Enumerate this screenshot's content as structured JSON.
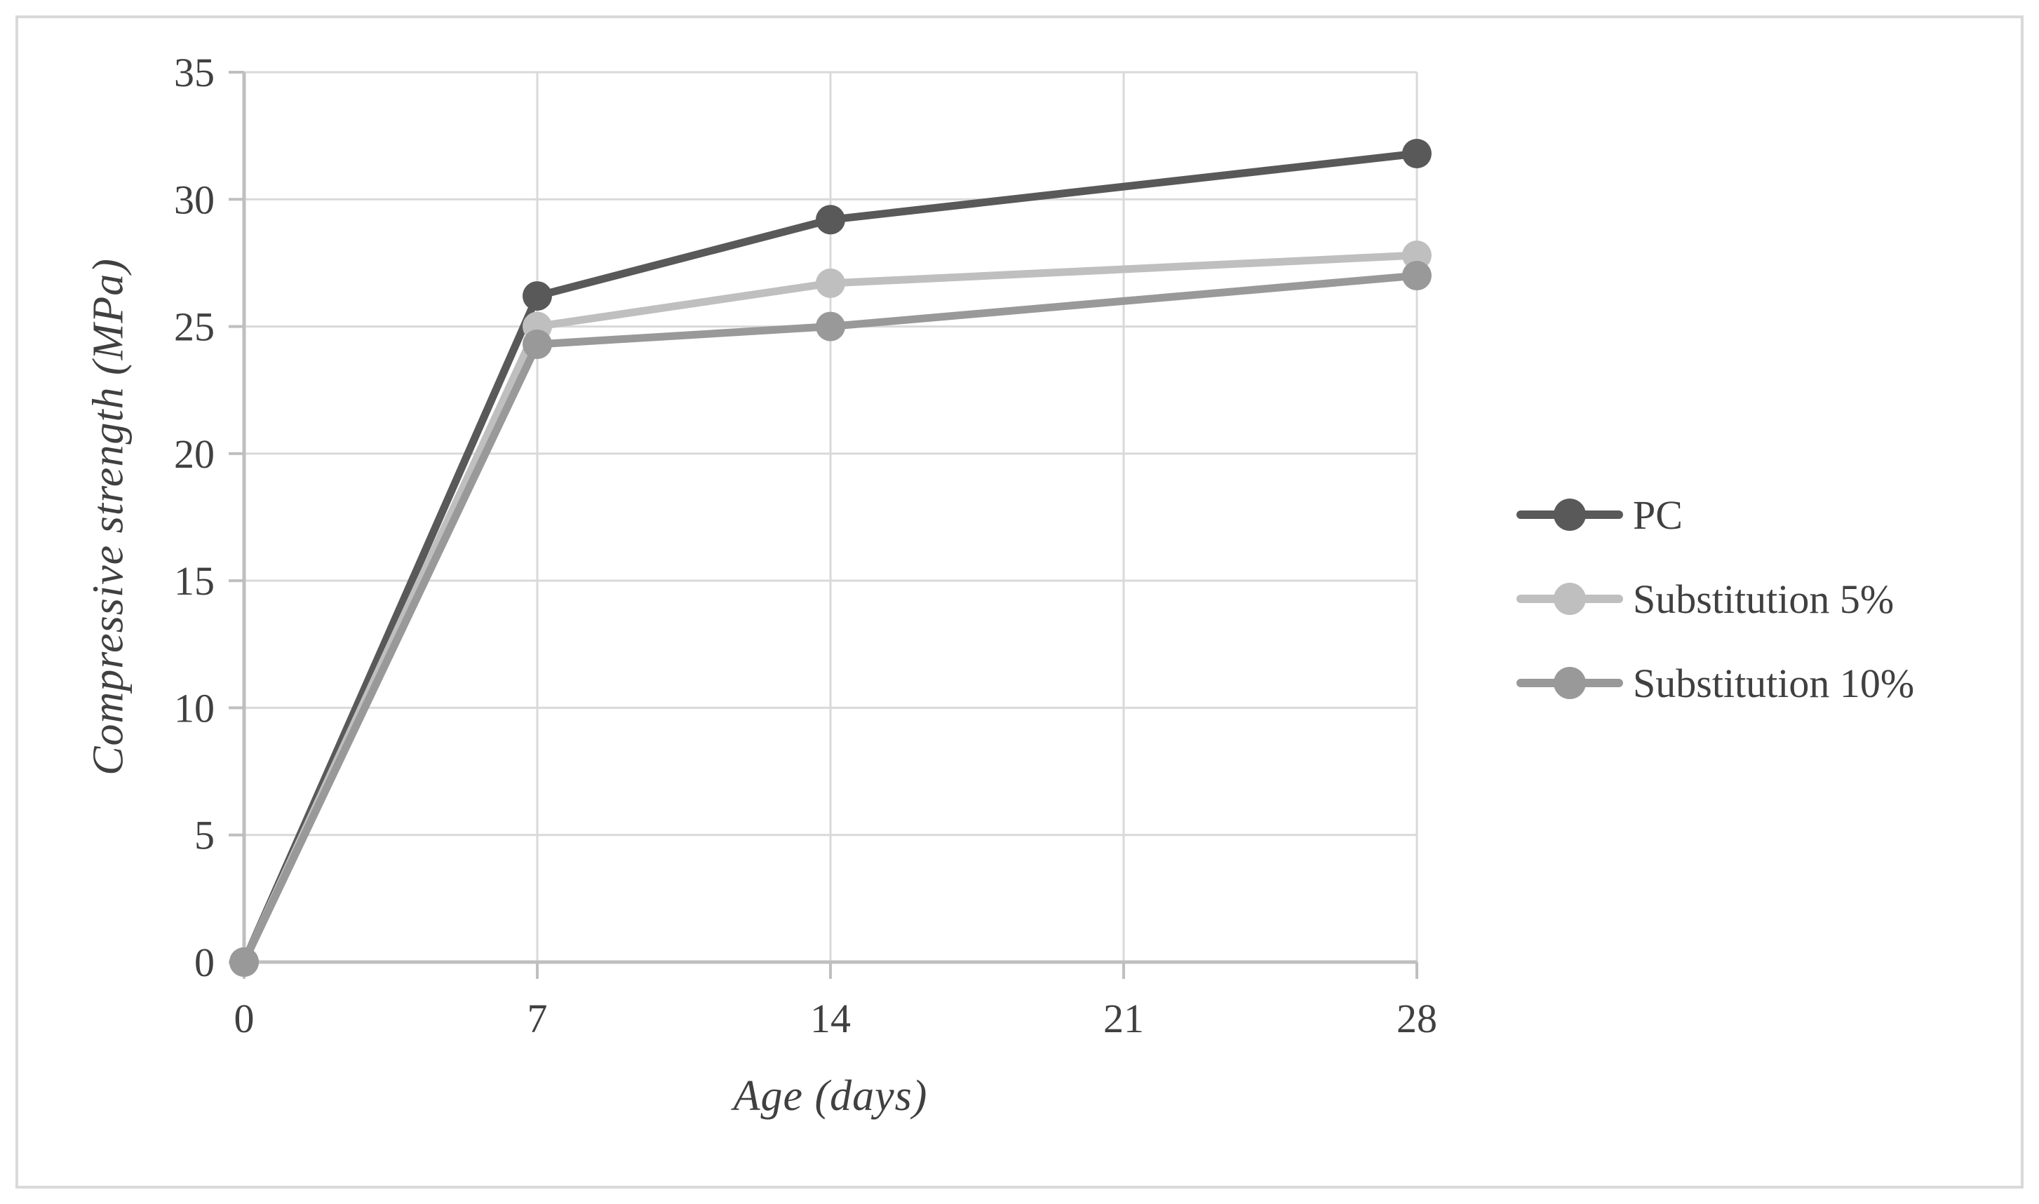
{
  "figure": {
    "background": "#ffffff",
    "border_color": "#d9d9d9"
  },
  "chart_data": {
    "type": "line",
    "title": "",
    "xlabel": "Age (days)",
    "ylabel": "Compressive strength (MPa)",
    "x": [
      0,
      7,
      14,
      28
    ],
    "xlim": [
      0,
      28
    ],
    "ylim": [
      0,
      35
    ],
    "x_ticks": [
      0,
      7,
      14,
      21,
      28
    ],
    "y_ticks": [
      0,
      5,
      10,
      15,
      20,
      25,
      30,
      35
    ],
    "grid": true,
    "legend_position": "right",
    "series": [
      {
        "name": "PC",
        "color": "#595959",
        "values": [
          0,
          26.2,
          29.2,
          31.8
        ]
      },
      {
        "name": "Substitution 5%",
        "color": "#bfbfbf",
        "values": [
          0,
          25.0,
          26.7,
          27.8
        ]
      },
      {
        "name": "Substitution 10%",
        "color": "#999999",
        "values": [
          0,
          24.3,
          25.0,
          27.0
        ]
      }
    ],
    "colors": {
      "gridline": "#d9d9d9",
      "axis": "#bfbfbf",
      "tick": "#bfbfbf",
      "text": "#404040"
    }
  }
}
